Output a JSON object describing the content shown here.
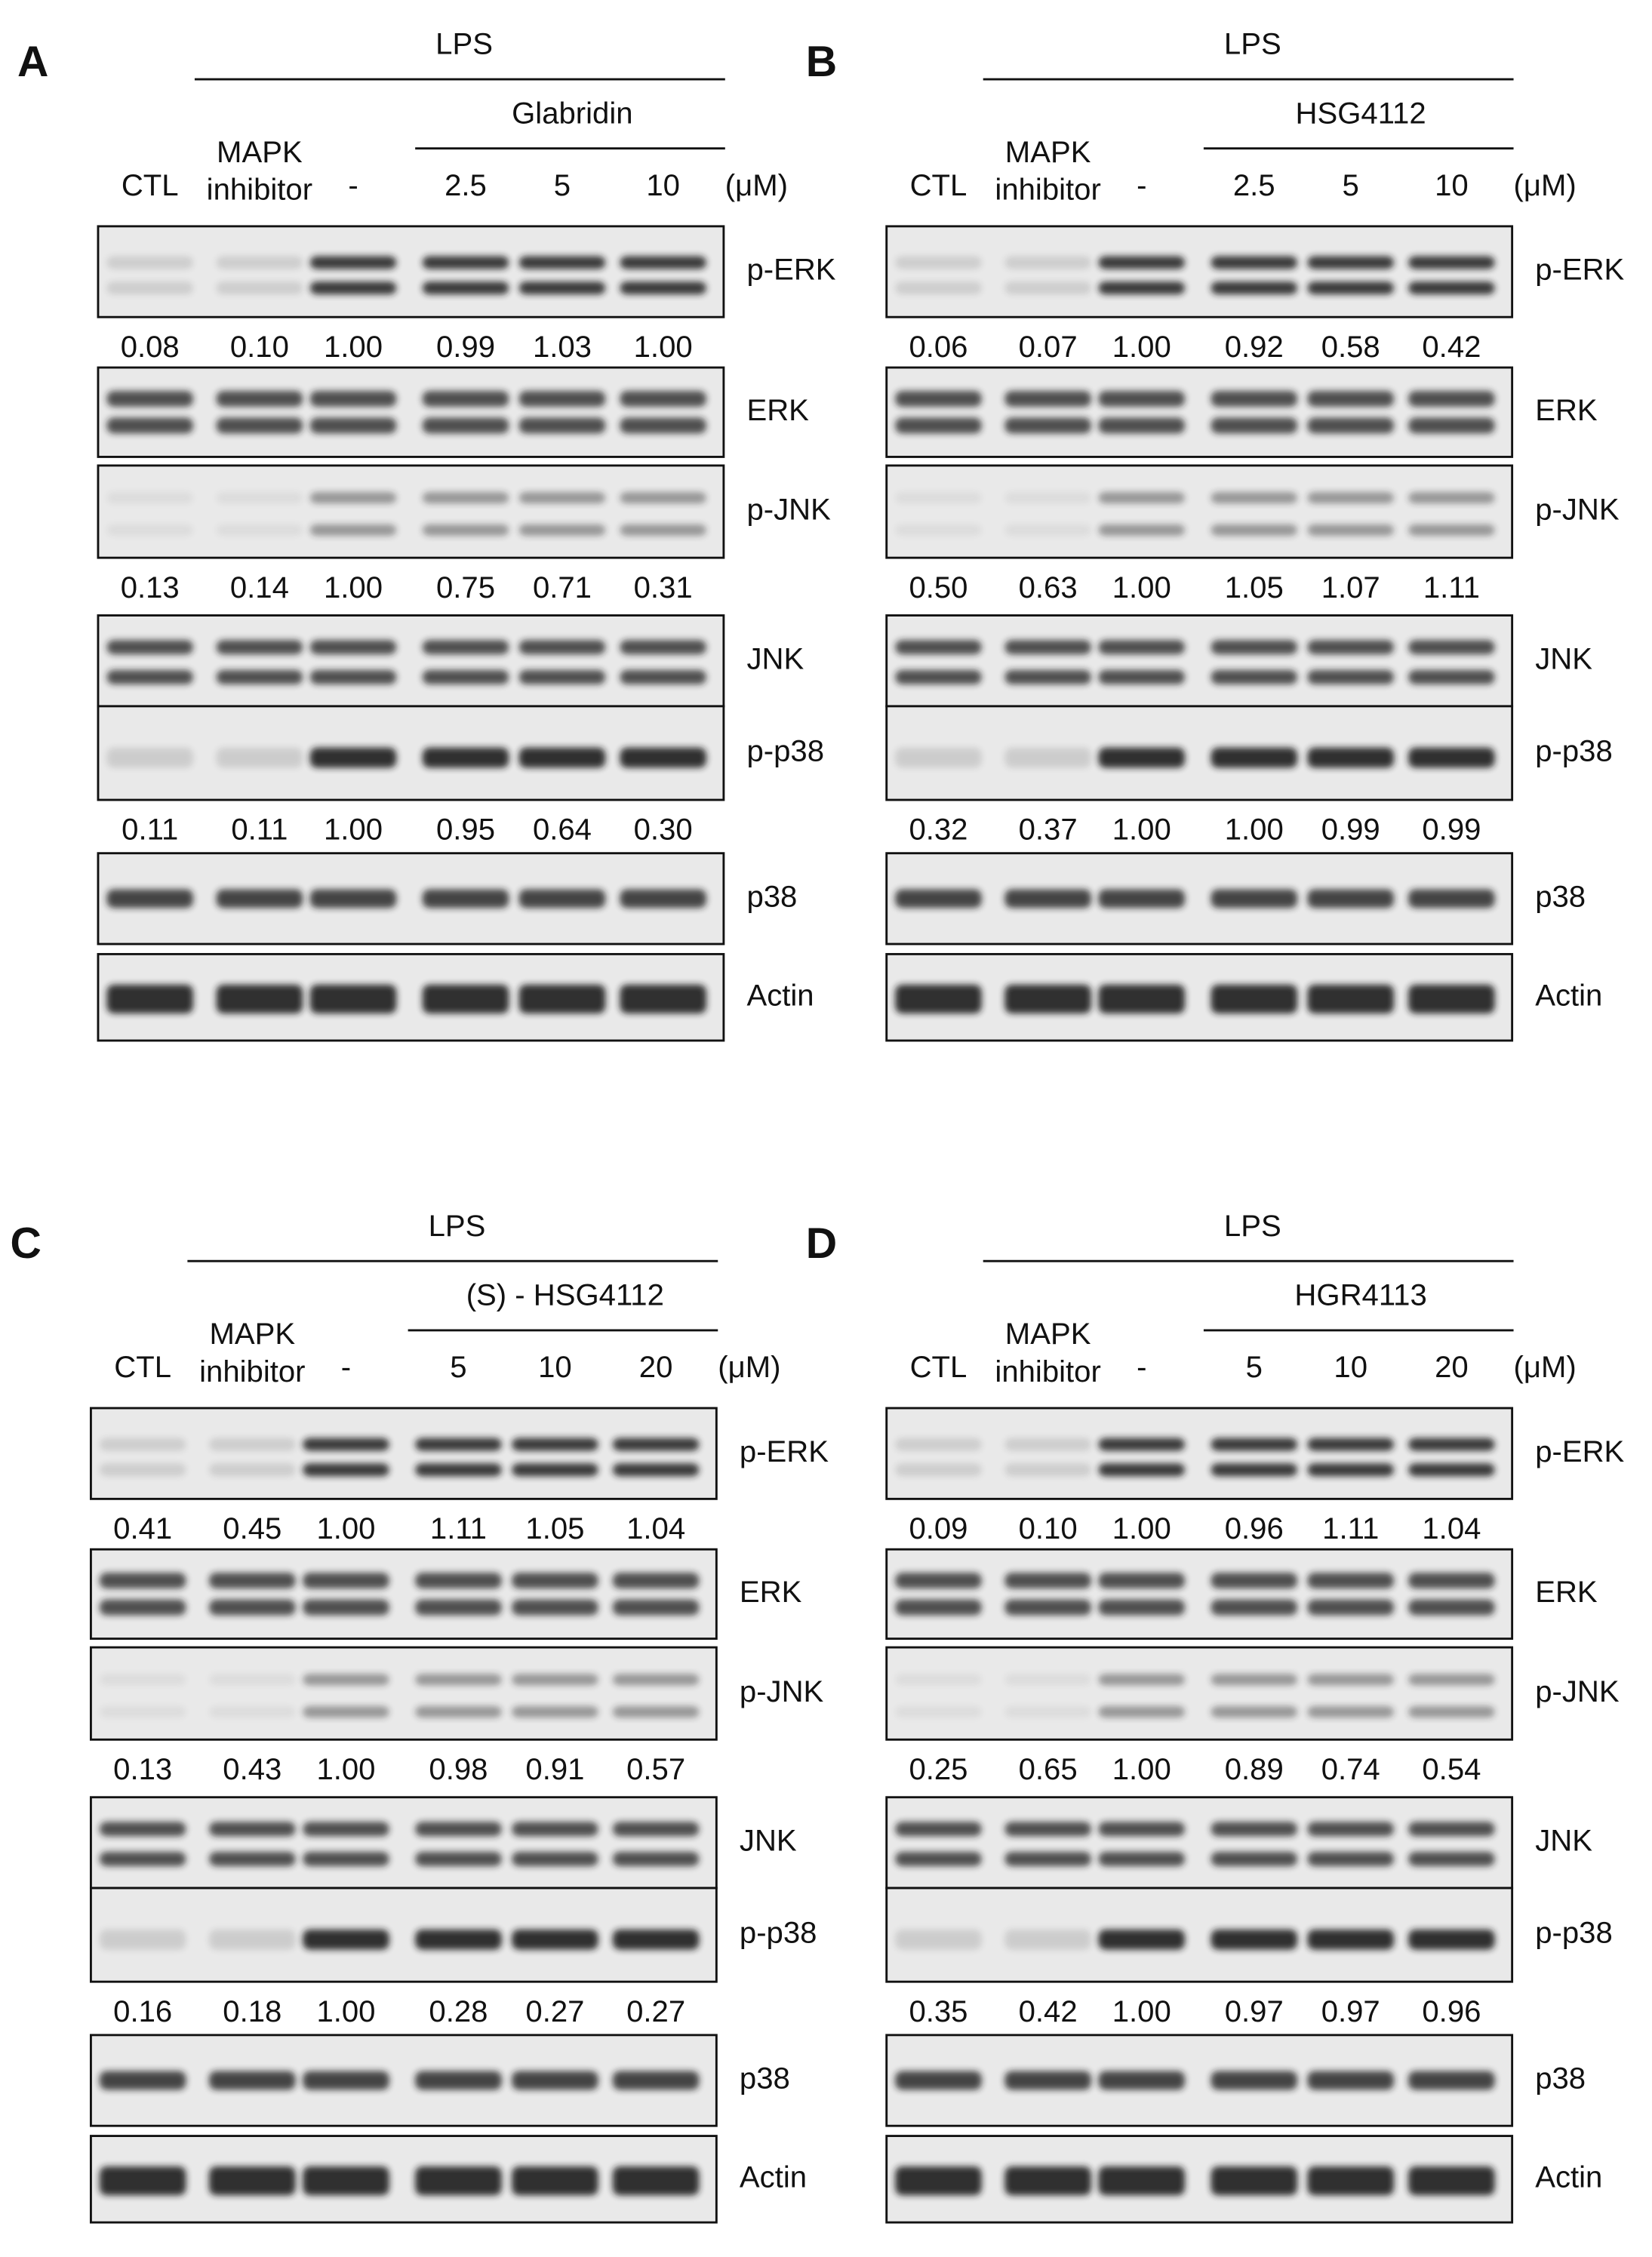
{
  "panels": [
    {
      "letter": "A",
      "stimulus": "LPS",
      "treatment": "Glabridin",
      "lanes": [
        [
          "CTL"
        ],
        [
          "MAPK",
          "inhibitor"
        ],
        [
          "-"
        ],
        [
          "2.5"
        ],
        [
          "5"
        ],
        [
          "10"
        ]
      ],
      "unit": "(μM)",
      "blots": [
        {
          "name": "p-ERK",
          "quant": [
            "0.08",
            "0.10",
            "1.00",
            "0.99",
            "1.03",
            "1.00"
          ]
        },
        {
          "name": "ERK"
        },
        {
          "name": "p-JNK",
          "quant": [
            "0.13",
            "0.14",
            "1.00",
            "0.75",
            "0.71",
            "0.31"
          ]
        },
        {
          "name": "JNK"
        },
        {
          "name": "p-p38",
          "quant": [
            "0.11",
            "0.11",
            "1.00",
            "0.95",
            "0.64",
            "0.30"
          ]
        },
        {
          "name": "p38"
        },
        {
          "name": "Actin"
        }
      ]
    },
    {
      "letter": "B",
      "stimulus": "LPS",
      "treatment": "HSG4112",
      "lanes": [
        [
          "CTL"
        ],
        [
          "MAPK",
          "inhibitor"
        ],
        [
          "-"
        ],
        [
          "2.5"
        ],
        [
          "5"
        ],
        [
          "10"
        ]
      ],
      "unit": "(μM)",
      "blots": [
        {
          "name": "p-ERK",
          "quant": [
            "0.06",
            "0.07",
            "1.00",
            "0.92",
            "0.58",
            "0.42"
          ]
        },
        {
          "name": "ERK"
        },
        {
          "name": "p-JNK",
          "quant": [
            "0.50",
            "0.63",
            "1.00",
            "1.05",
            "1.07",
            "1.11"
          ]
        },
        {
          "name": "JNK"
        },
        {
          "name": "p-p38",
          "quant": [
            "0.32",
            "0.37",
            "1.00",
            "1.00",
            "0.99",
            "0.99"
          ]
        },
        {
          "name": "p38"
        },
        {
          "name": "Actin"
        }
      ]
    },
    {
      "letter": "C",
      "stimulus": "LPS",
      "treatment": "(S) - HSG4112",
      "lanes": [
        [
          "CTL"
        ],
        [
          "MAPK",
          "inhibitor"
        ],
        [
          "-"
        ],
        [
          "5"
        ],
        [
          "10"
        ],
        [
          "20"
        ]
      ],
      "unit": "(μM)",
      "blots": [
        {
          "name": "p-ERK",
          "quant": [
            "0.41",
            "0.45",
            "1.00",
            "1.11",
            "1.05",
            "1.04"
          ]
        },
        {
          "name": "ERK"
        },
        {
          "name": "p-JNK",
          "quant": [
            "0.13",
            "0.43",
            "1.00",
            "0.98",
            "0.91",
            "0.57"
          ]
        },
        {
          "name": "JNK"
        },
        {
          "name": "p-p38",
          "quant": [
            "0.16",
            "0.18",
            "1.00",
            "0.28",
            "0.27",
            "0.27"
          ]
        },
        {
          "name": "p38"
        },
        {
          "name": "Actin"
        }
      ]
    },
    {
      "letter": "D",
      "stimulus": "LPS",
      "treatment": "HGR4113",
      "lanes": [
        [
          "CTL"
        ],
        [
          "MAPK",
          "inhibitor"
        ],
        [
          "-"
        ],
        [
          "5"
        ],
        [
          "10"
        ],
        [
          "20"
        ]
      ],
      "unit": "(μM)",
      "blots": [
        {
          "name": "p-ERK",
          "quant": [
            "0.09",
            "0.10",
            "1.00",
            "0.96",
            "1.11",
            "1.04"
          ]
        },
        {
          "name": "ERK"
        },
        {
          "name": "p-JNK",
          "quant": [
            "0.25",
            "0.65",
            "1.00",
            "0.89",
            "0.74",
            "0.54"
          ]
        },
        {
          "name": "JNK"
        },
        {
          "name": "p-p38",
          "quant": [
            "0.35",
            "0.42",
            "1.00",
            "0.97",
            "0.97",
            "0.96"
          ]
        },
        {
          "name": "p38"
        },
        {
          "name": "Actin"
        }
      ]
    }
  ]
}
